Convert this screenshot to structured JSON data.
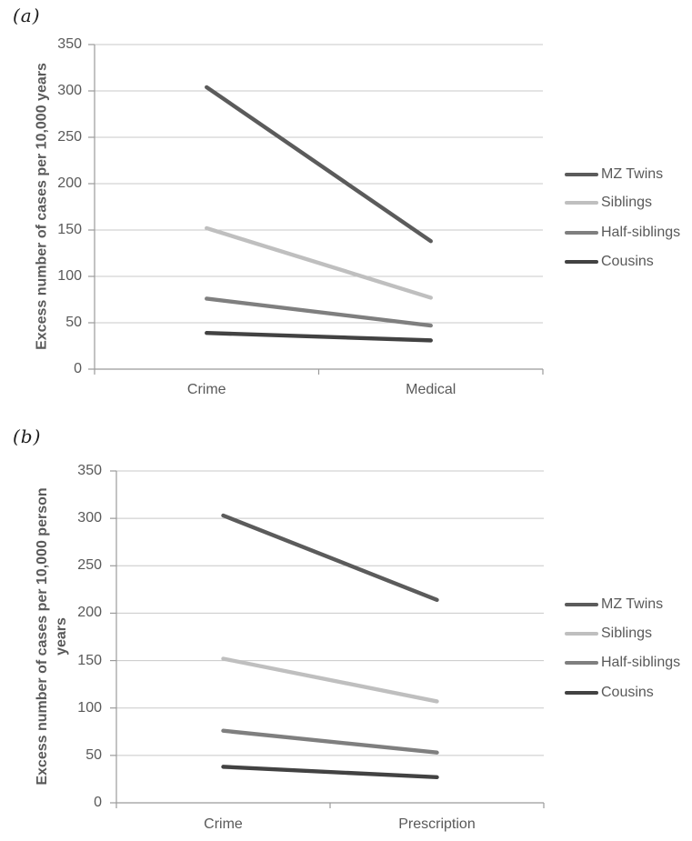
{
  "figure": {
    "background": "#ffffff",
    "text_color": "#595959",
    "grid_color": "#c8c8c8",
    "axis_color": "#9b9b9b"
  },
  "chart_data": [
    {
      "type": "line",
      "panel": "(a)",
      "title": "",
      "xlabel": "",
      "ylabel": "Excess number of cases per 10,000 years",
      "ylabel_lines": [
        "Excess number of cases per 10,000 years"
      ],
      "categories": [
        "Crime",
        "Medical"
      ],
      "series": [
        {
          "name": "MZ Twins",
          "values": [
            304,
            138
          ],
          "color": "#5b5b5b"
        },
        {
          "name": "Siblings",
          "values": [
            152,
            77
          ],
          "color": "#bfbfbf"
        },
        {
          "name": "Half-siblings",
          "values": [
            76,
            47
          ],
          "color": "#7f7f7f"
        },
        {
          "name": "Cousins",
          "values": [
            39,
            31
          ],
          "color": "#424242"
        }
      ],
      "ylim": [
        0,
        350
      ],
      "yticks": [
        350,
        300,
        250,
        200,
        150,
        100,
        50,
        0
      ],
      "grid": true,
      "legend_position": "right"
    },
    {
      "type": "line",
      "panel": "(b)",
      "title": "",
      "xlabel": "",
      "ylabel": "Excess number of cases per 10,000 person years",
      "ylabel_lines": [
        "Excess number of cases per 10,000 person",
        "years"
      ],
      "categories": [
        "Crime",
        "Prescription"
      ],
      "series": [
        {
          "name": "MZ Twins",
          "values": [
            303,
            214
          ],
          "color": "#5b5b5b"
        },
        {
          "name": "Siblings",
          "values": [
            152,
            107
          ],
          "color": "#bfbfbf"
        },
        {
          "name": "Half-siblings",
          "values": [
            76,
            53
          ],
          "color": "#7f7f7f"
        },
        {
          "name": "Cousins",
          "values": [
            38,
            27
          ],
          "color": "#424242"
        }
      ],
      "ylim": [
        0,
        350
      ],
      "yticks": [
        350,
        300,
        250,
        200,
        150,
        100,
        50,
        0
      ],
      "grid": true,
      "legend_position": "right"
    }
  ]
}
